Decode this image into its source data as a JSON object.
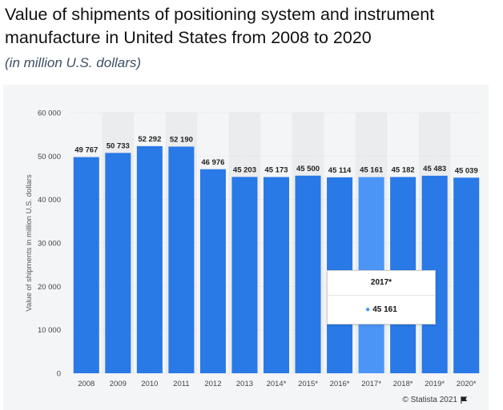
{
  "title": "Value of shipments of positioning system and instrument manufacture in United States from 2008 to 2020",
  "subtitle": "(in million U.S. dollars)",
  "credit": "© Statista 2021",
  "colors": {
    "bar": "#2979e6",
    "bar_highlight": "#4a95f6",
    "grid": "#dcdcdc",
    "panel": "#f4f5f6",
    "band": "#ebecee"
  },
  "tooltip": {
    "label": "2017*",
    "value": "45 161"
  },
  "chart_data": {
    "type": "bar",
    "categories": [
      "2008",
      "2009",
      "2010",
      "2011",
      "2012",
      "2013",
      "2014*",
      "2015*",
      "2016*",
      "2017*",
      "2018*",
      "2019*",
      "2020*"
    ],
    "values": [
      49767,
      50733,
      52292,
      52190,
      46976,
      45203,
      45173,
      45500,
      45114,
      45161,
      45182,
      45483,
      45039
    ],
    "value_labels": [
      "49 767",
      "50 733",
      "52 292",
      "52 190",
      "46 976",
      "45 203",
      "45 173",
      "45 500",
      "45 114",
      "45 161",
      "45 182",
      "45 483",
      "45 039"
    ],
    "ylabel": "Value of shipments in million U.S. dollars",
    "yticks": [
      0,
      10000,
      20000,
      30000,
      40000,
      50000,
      60000
    ],
    "ytick_labels": [
      "0",
      "10 000",
      "20 000",
      "30 000",
      "40 000",
      "50 000",
      "60 000"
    ],
    "ylim": [
      0,
      60000
    ],
    "highlighted_category": "2017*",
    "grid": true
  }
}
